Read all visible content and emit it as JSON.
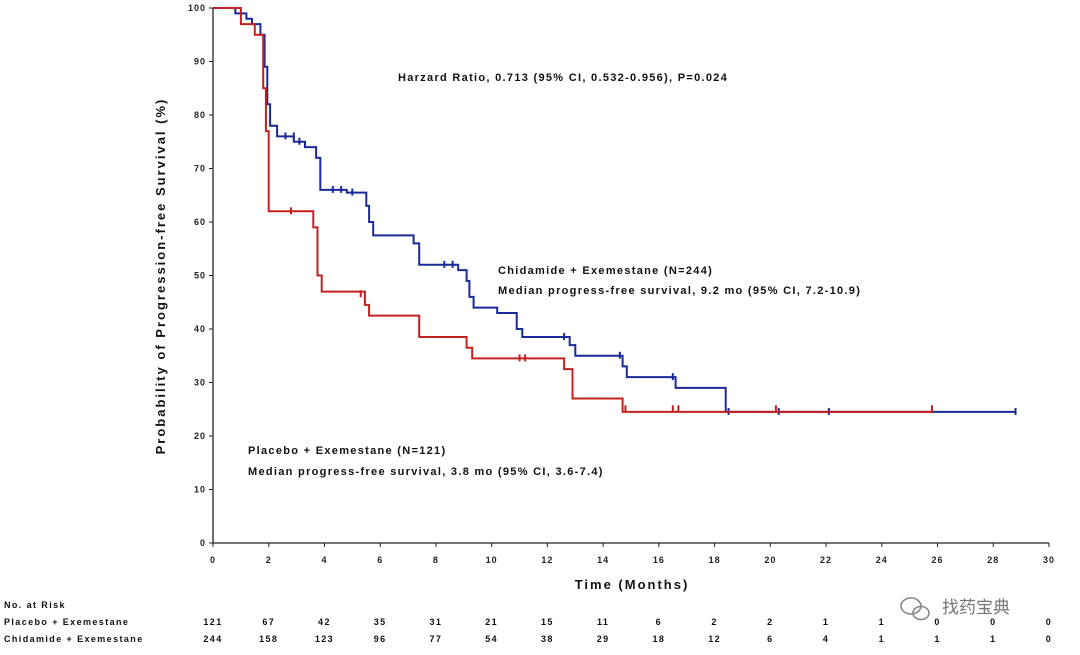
{
  "chart_data": {
    "type": "line",
    "title": "",
    "xlabel": "Time (Months)",
    "ylabel": "Probability of Progression-free Survival (%)",
    "xlim": [
      0,
      30
    ],
    "ylim": [
      0,
      100
    ],
    "xticks": [
      0,
      2,
      4,
      6,
      8,
      10,
      12,
      14,
      16,
      18,
      20,
      22,
      24,
      26,
      28,
      30
    ],
    "yticks": [
      0,
      10,
      20,
      30,
      40,
      50,
      60,
      70,
      80,
      90,
      100
    ],
    "annotations": {
      "hazard_ratio": "Harzard Ratio, 0.713 (95% CI, 0.532-0.956), P=0.024",
      "chidamide_name": "Chidamide + Exemestane (N=244)",
      "chidamide_median": "Median progress-free survival, 9.2 mo (95% CI, 7.2-10.9)",
      "placebo_name": "Placebo + Exemestane (N=121)",
      "placebo_median": "Median progress-free survival, 3.8 mo (95% CI, 3.6-7.4)"
    },
    "series": [
      {
        "name": "Chidamide + Exemestane",
        "color": "#1a2a9a",
        "points": [
          [
            0,
            100
          ],
          [
            0.8,
            100
          ],
          [
            0.8,
            99
          ],
          [
            1.2,
            99
          ],
          [
            1.2,
            98
          ],
          [
            1.4,
            98
          ],
          [
            1.4,
            97
          ],
          [
            1.7,
            97
          ],
          [
            1.7,
            95
          ],
          [
            1.85,
            95
          ],
          [
            1.85,
            89
          ],
          [
            1.95,
            89
          ],
          [
            1.95,
            82
          ],
          [
            2.05,
            82
          ],
          [
            2.05,
            78
          ],
          [
            2.3,
            78
          ],
          [
            2.3,
            76
          ],
          [
            2.9,
            76
          ],
          [
            2.9,
            75
          ],
          [
            3.3,
            75
          ],
          [
            3.3,
            74
          ],
          [
            3.7,
            74
          ],
          [
            3.7,
            72
          ],
          [
            3.85,
            72
          ],
          [
            3.85,
            66
          ],
          [
            4.8,
            66
          ],
          [
            4.8,
            65.5
          ],
          [
            5.5,
            65.5
          ],
          [
            5.5,
            63
          ],
          [
            5.6,
            63
          ],
          [
            5.6,
            60
          ],
          [
            5.75,
            60
          ],
          [
            5.75,
            57.5
          ],
          [
            7.2,
            57.5
          ],
          [
            7.2,
            56
          ],
          [
            7.4,
            56
          ],
          [
            7.4,
            52
          ],
          [
            8.8,
            52
          ],
          [
            8.8,
            51
          ],
          [
            9.1,
            51
          ],
          [
            9.1,
            49
          ],
          [
            9.2,
            49
          ],
          [
            9.2,
            46
          ],
          [
            9.35,
            46
          ],
          [
            9.35,
            44
          ],
          [
            10.2,
            44
          ],
          [
            10.2,
            43
          ],
          [
            10.9,
            43
          ],
          [
            10.9,
            40
          ],
          [
            11.1,
            40
          ],
          [
            11.1,
            38.5
          ],
          [
            12.8,
            38.5
          ],
          [
            12.8,
            37
          ],
          [
            13.0,
            37
          ],
          [
            13.0,
            35
          ],
          [
            14.7,
            35
          ],
          [
            14.7,
            33
          ],
          [
            14.85,
            33
          ],
          [
            14.85,
            31
          ],
          [
            16.6,
            31
          ],
          [
            16.6,
            29
          ],
          [
            18.4,
            29
          ],
          [
            18.4,
            24.5
          ],
          [
            28.8,
            24.5
          ]
        ],
        "censors": [
          [
            2.6,
            76
          ],
          [
            2.9,
            76
          ],
          [
            3.1,
            75
          ],
          [
            4.3,
            66
          ],
          [
            4.6,
            66
          ],
          [
            5.0,
            65.5
          ],
          [
            8.3,
            52
          ],
          [
            8.6,
            52
          ],
          [
            12.6,
            38.5
          ],
          [
            14.6,
            35
          ],
          [
            16.5,
            31
          ],
          [
            18.5,
            24.5
          ],
          [
            20.3,
            24.5
          ],
          [
            22.1,
            24.5
          ],
          [
            28.8,
            24.5
          ]
        ]
      },
      {
        "name": "Placebo + Exemestane",
        "color": "#c42020",
        "points": [
          [
            0,
            100
          ],
          [
            1.0,
            100
          ],
          [
            1.0,
            97
          ],
          [
            1.5,
            97
          ],
          [
            1.5,
            95
          ],
          [
            1.8,
            95
          ],
          [
            1.8,
            85
          ],
          [
            1.9,
            85
          ],
          [
            1.9,
            77
          ],
          [
            2.0,
            77
          ],
          [
            2.0,
            62
          ],
          [
            3.6,
            62
          ],
          [
            3.6,
            59
          ],
          [
            3.75,
            59
          ],
          [
            3.75,
            50
          ],
          [
            3.9,
            50
          ],
          [
            3.9,
            47
          ],
          [
            5.45,
            47
          ],
          [
            5.45,
            44.5
          ],
          [
            5.6,
            44.5
          ],
          [
            5.6,
            42.5
          ],
          [
            7.4,
            42.5
          ],
          [
            7.4,
            38.5
          ],
          [
            9.1,
            38.5
          ],
          [
            9.1,
            36.5
          ],
          [
            9.3,
            36.5
          ],
          [
            9.3,
            34.5
          ],
          [
            12.6,
            34.5
          ],
          [
            12.6,
            32.5
          ],
          [
            12.9,
            32.5
          ],
          [
            12.9,
            27
          ],
          [
            14.7,
            27
          ],
          [
            14.7,
            24.5
          ],
          [
            25.8,
            24.5
          ]
        ],
        "censors": [
          [
            2.8,
            62
          ],
          [
            5.3,
            46.5
          ],
          [
            11.0,
            34.5
          ],
          [
            11.2,
            34.5
          ],
          [
            14.8,
            25
          ],
          [
            16.5,
            25
          ],
          [
            16.7,
            25
          ],
          [
            20.2,
            25
          ],
          [
            25.8,
            25
          ]
        ]
      }
    ]
  },
  "risk_table": {
    "title": "No. at Risk",
    "rows": [
      {
        "label": "Placebo + Exemestane",
        "values": [
          "121",
          "67",
          "42",
          "35",
          "31",
          "21",
          "15",
          "11",
          "6",
          "2",
          "2",
          "1",
          "1",
          "0",
          "0",
          "0"
        ]
      },
      {
        "label": "Chidamide + Exemestane",
        "values": [
          "244",
          "158",
          "123",
          "96",
          "77",
          "54",
          "38",
          "29",
          "18",
          "12",
          "6",
          "4",
          "1",
          "1",
          "1",
          "0"
        ]
      }
    ]
  },
  "watermark": {
    "text": "找药宝典"
  }
}
